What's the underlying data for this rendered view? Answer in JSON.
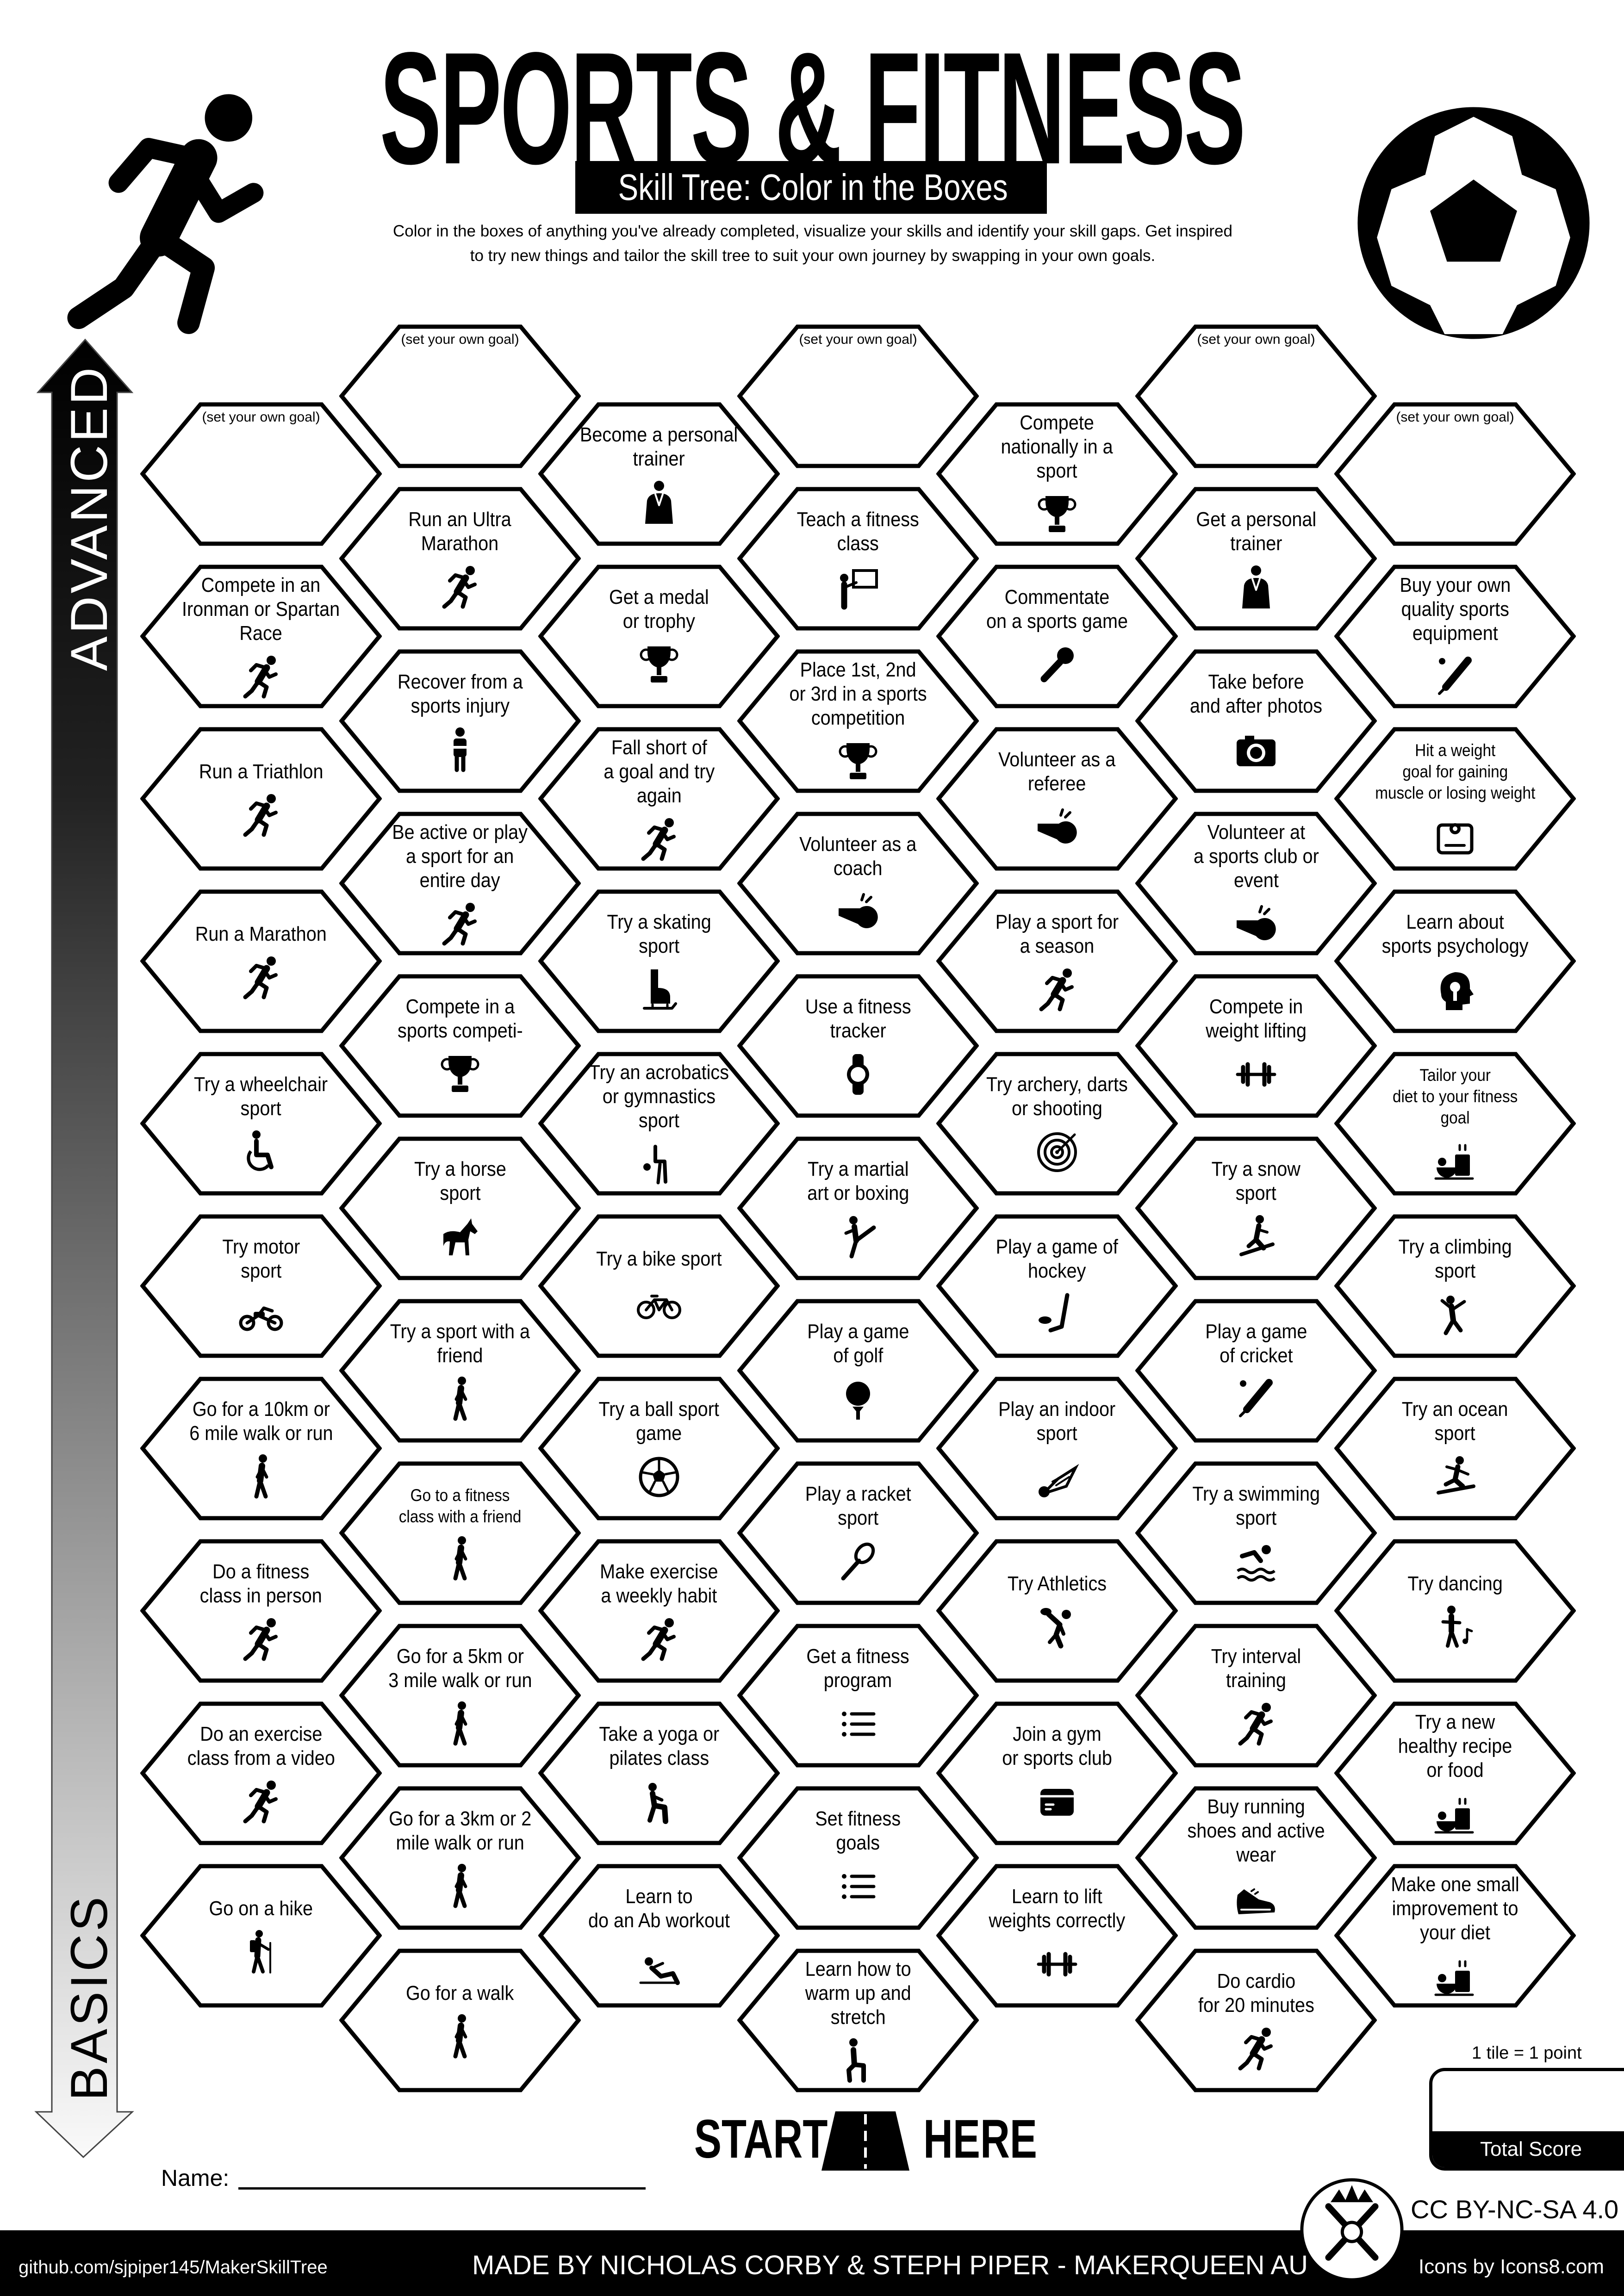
{
  "header": {
    "title": "SPORTS & FITNESS",
    "subtitle": "Skill Tree: Color in the Boxes",
    "description_line1": "Color in the boxes of anything you've already completed, visualize your skills and identify your skill gaps.  Get inspired",
    "description_line2": "to try new things and tailor the skill tree to suit your own journey by swapping in your own goals.",
    "left_icon": "runner-icon",
    "right_icon": "soccer-ball-icon"
  },
  "axis": {
    "top_label": "ADVANCED",
    "bottom_label": "BASICS"
  },
  "own_goal_label": "(set your own goal)",
  "columns": [
    [
      {
        "own_goal": true
      },
      {
        "text": "Compete in an\nIronman or Spartan\nRace",
        "icon": "runner"
      },
      {
        "text": "Run a Triathlon",
        "icon": "runner"
      },
      {
        "text": "Run a Marathon",
        "icon": "runner"
      },
      {
        "text": "Try a wheelchair\nsport",
        "icon": "wheelchair"
      },
      {
        "text": "Try motor\nsport",
        "icon": "motorbike"
      },
      {
        "text": "Go for a 10km or\n6 mile walk or run",
        "icon": "walker"
      },
      {
        "text": "Do a fitness\nclass in person",
        "icon": "runner"
      },
      {
        "text": "Do an exercise\nclass from a video",
        "icon": "runner"
      },
      {
        "text": "Go on a hike",
        "icon": "hiker"
      }
    ],
    [
      {
        "own_goal": true
      },
      {
        "text": "Run an Ultra\nMarathon",
        "icon": "runner"
      },
      {
        "text": "Recover from a\nsports injury",
        "icon": "injury"
      },
      {
        "text": "Be active or play\na sport for an\nentire day",
        "icon": "runner"
      },
      {
        "text": "Compete in a\nsports competi-",
        "icon": "trophy"
      },
      {
        "text": "Try a horse\nsport",
        "icon": "horse"
      },
      {
        "text": "Try a sport with a\nfriend",
        "icon": "walker"
      },
      {
        "text": "Go to a fitness\nclass with a friend",
        "icon": "walker"
      },
      {
        "text": "Go for a 5km or\n3 mile walk or run",
        "icon": "walker"
      },
      {
        "text": "Go for a 3km or 2\nmile walk or run",
        "icon": "walker"
      },
      {
        "text": "Go for a walk",
        "icon": "walker"
      }
    ],
    [
      {
        "text": "Become a personal\ntrainer",
        "icon": "trainer"
      },
      {
        "text": "Get a medal\nor trophy",
        "icon": "trophy"
      },
      {
        "text": "Fall short of\na goal and try\nagain",
        "icon": "runner"
      },
      {
        "text": "Try a skating\nsport",
        "icon": "skate"
      },
      {
        "text": "Try an acrobatics\nor gymnastics\nsport",
        "icon": "gymnast"
      },
      {
        "text": "Try a bike sport",
        "icon": "bicycle"
      },
      {
        "text": "Try a ball sport\ngame",
        "icon": "soccer"
      },
      {
        "text": "Make exercise\na weekly habit",
        "icon": "runner"
      },
      {
        "text": "Take a yoga or\npilates class",
        "icon": "yoga"
      },
      {
        "text": "Learn to\ndo an Ab workout",
        "icon": "situp"
      }
    ],
    [
      {
        "own_goal": true
      },
      {
        "text": "Teach a fitness\nclass",
        "icon": "teach"
      },
      {
        "text": "Place 1st, 2nd\nor 3rd in a sports\ncompetition",
        "icon": "trophy"
      },
      {
        "text": "Volunteer as a\ncoach",
        "icon": "whistle"
      },
      {
        "text": "Use a fitness\ntracker",
        "icon": "watch"
      },
      {
        "text": "Try a martial\nart or boxing",
        "icon": "karate"
      },
      {
        "text": "Play a game\nof golf",
        "icon": "golf"
      },
      {
        "text": "Play a racket\nsport",
        "icon": "racket"
      },
      {
        "text": "Get a fitness\nprogram",
        "icon": "list"
      },
      {
        "text": "Set fitness\ngoals",
        "icon": "list"
      },
      {
        "text": "Learn how to\nwarm up and\nstretch",
        "icon": "stretch"
      }
    ],
    [
      {
        "text": "Compete\nnationally in a\nsport",
        "icon": "trophy"
      },
      {
        "text": "Commentate\non a sports game",
        "icon": "microphone"
      },
      {
        "text": "Volunteer as a\nreferee",
        "icon": "whistle"
      },
      {
        "text": "Play a sport for\na season",
        "icon": "runner"
      },
      {
        "text": "Try archery, darts\nor shooting",
        "icon": "target"
      },
      {
        "text": "Play a game of\nhockey",
        "icon": "hockey"
      },
      {
        "text": "Play an indoor\nsport",
        "icon": "shuttlecock"
      },
      {
        "text": "Try Athletics",
        "icon": "athletics"
      },
      {
        "text": "Join a gym\nor sports club",
        "icon": "card"
      },
      {
        "text": "Learn to lift\nweights correctly",
        "icon": "dumbbell"
      }
    ],
    [
      {
        "own_goal": true
      },
      {
        "text": "Get a personal\ntrainer",
        "icon": "trainer"
      },
      {
        "text": "Take before\nand after photos",
        "icon": "camera"
      },
      {
        "text": "Volunteer at\na sports club or\nevent",
        "icon": "whistle"
      },
      {
        "text": "Compete in\nweight lifting",
        "icon": "dumbbell"
      },
      {
        "text": "Try a snow\nsport",
        "icon": "snowboard"
      },
      {
        "text": "Play a game\nof cricket",
        "icon": "cricket"
      },
      {
        "text": "Try a swimming\nsport",
        "icon": "swimmer"
      },
      {
        "text": "Try interval\ntraining",
        "icon": "runner"
      },
      {
        "text": "Buy running\nshoes and active\nwear",
        "icon": "shoe"
      },
      {
        "text": "Do cardio\nfor 20 minutes",
        "icon": "runner"
      }
    ],
    [
      {
        "own_goal": true
      },
      {
        "text": "Buy your own\nquality sports\nequipment",
        "icon": "cricket"
      },
      {
        "text": "Hit a weight\ngoal for gaining\nmuscle or losing weight",
        "icon": "scale"
      },
      {
        "text": "Learn about\nsports psychology",
        "icon": "brain"
      },
      {
        "text": "Tailor your\ndiet to your fitness\ngoal",
        "icon": "food"
      },
      {
        "text": "Try a climbing\nsport",
        "icon": "climber"
      },
      {
        "text": "Try an ocean\nsport",
        "icon": "surfer"
      },
      {
        "text": "Try dancing",
        "icon": "dancer"
      },
      {
        "text": "Try a new\nhealthy recipe\nor food",
        "icon": "food"
      },
      {
        "text": "Make one small\nimprovement to\nyour diet",
        "icon": "food"
      }
    ]
  ],
  "start": {
    "left": "START",
    "right": "HERE",
    "icon": "road-icon"
  },
  "score": {
    "note": "1 tile = 1 point",
    "label": "Total Score"
  },
  "name_label": "Name:",
  "license": "CC BY-NC-SA 4.0",
  "footer": {
    "url": "github.com/sjpiper145/MakerSkillTree",
    "credits": "MADE BY NICHOLAS CORBY & STEPH PIPER  -  MAKERQUEEN AU",
    "icons_credit": "Icons by Icons8.com"
  }
}
